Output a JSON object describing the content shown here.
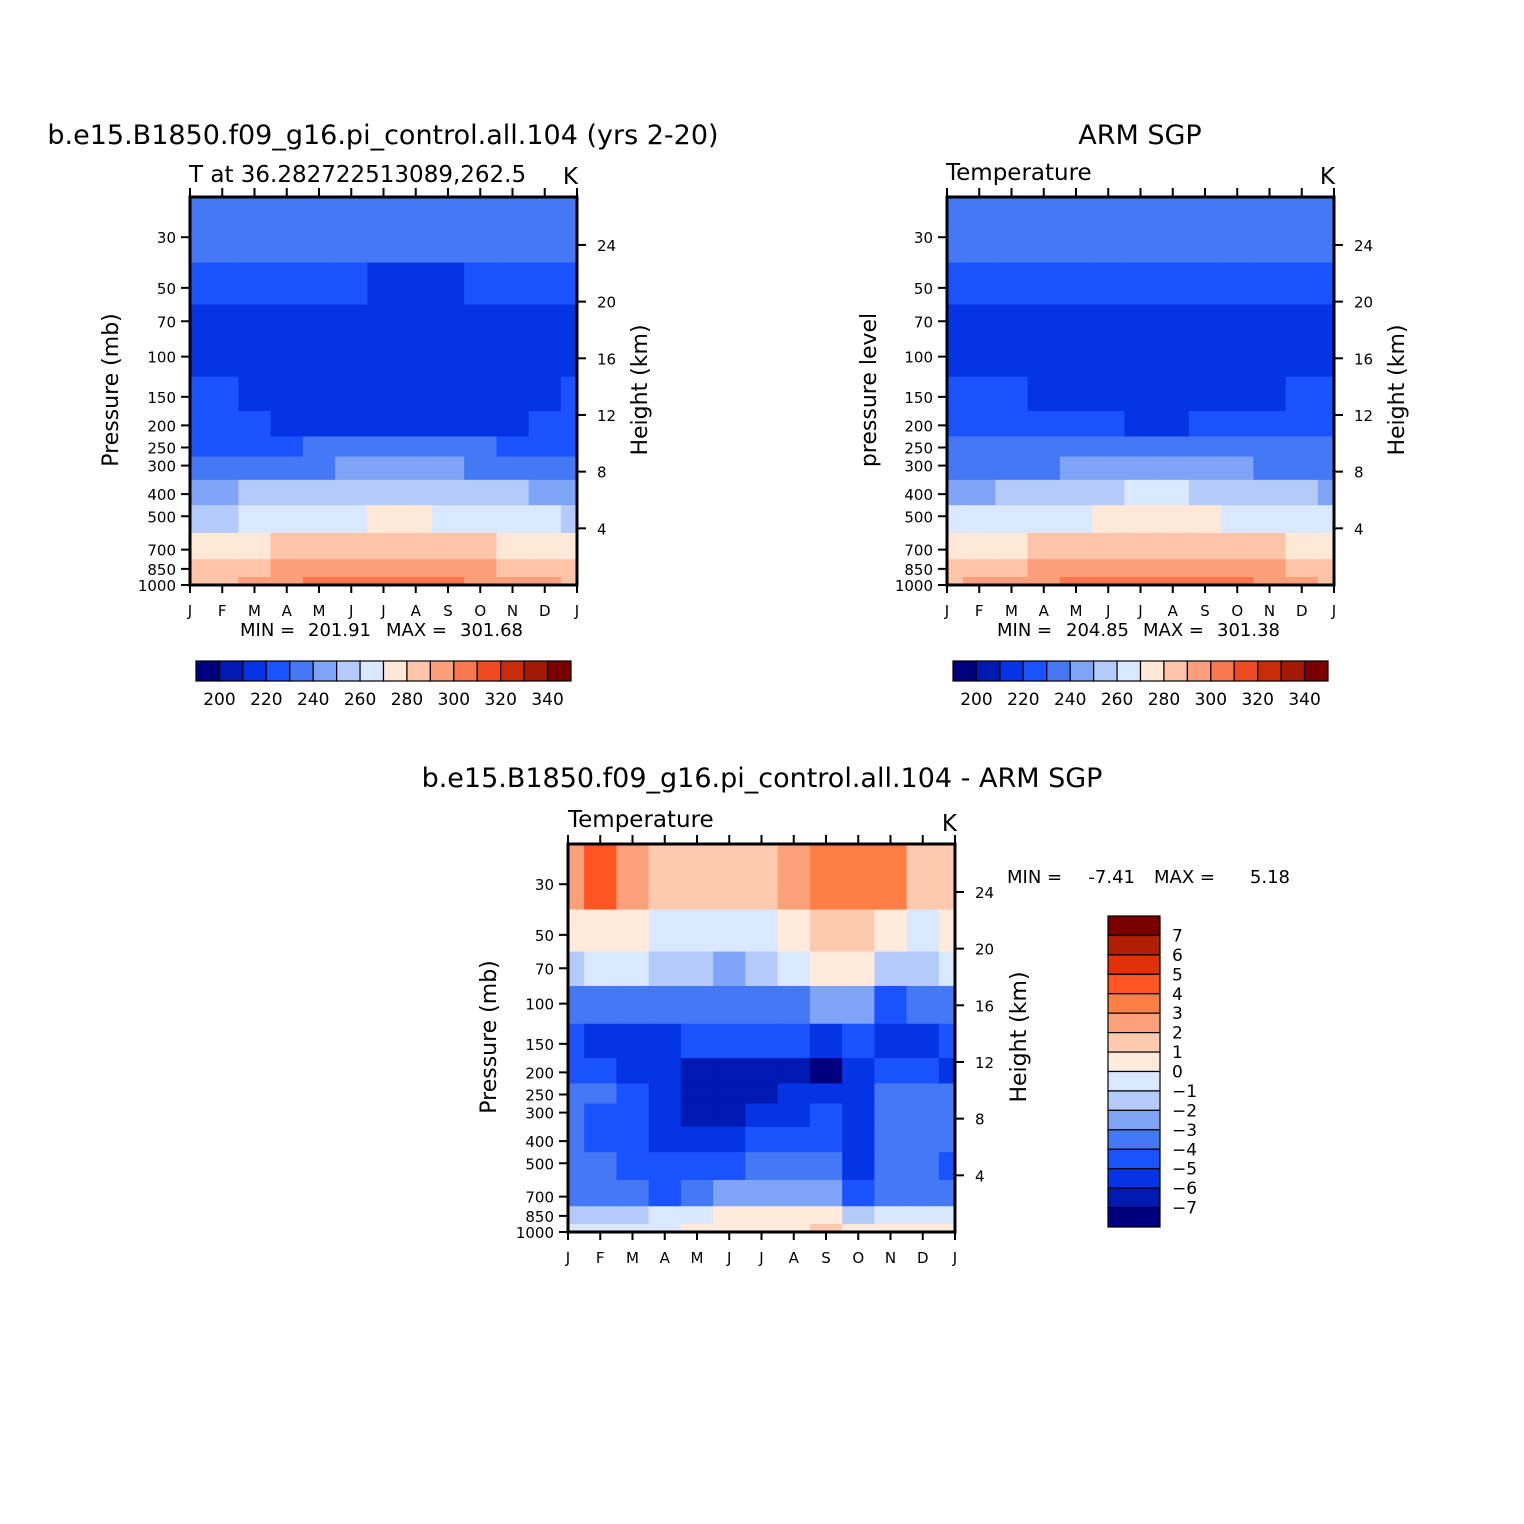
{
  "chart_data": [
    {
      "type": "heatmap",
      "title": "b.e15.B1850.f09_g16.pi_control.all.104 (yrs 2-20)",
      "subtitle_left": "T at 36.282722513089,262.5",
      "subtitle_right": "K",
      "ylabel": "Pressure (mb)",
      "ylabel_right": "Height (km)",
      "x_ticks": [
        "J",
        "F",
        "M",
        "A",
        "M",
        "J",
        "J",
        "A",
        "S",
        "O",
        "N",
        "D",
        "J"
      ],
      "p_ticks": [
        30,
        50,
        70,
        100,
        150,
        200,
        250,
        300,
        400,
        500,
        700,
        850,
        1000
      ],
      "z_ticks": [
        24,
        20,
        16,
        12,
        8,
        4
      ],
      "min_label": "MIN =",
      "min_value": "201.91",
      "max_label": "MAX =",
      "max_value": "301.68",
      "label_bar": {
        "values": [
          "200",
          "220",
          "240",
          "260",
          "280",
          "300",
          "320",
          "340"
        ]
      },
      "series": [
        {
          "name": "30 mb",
          "values": [
            225,
            226,
            226,
            227,
            228,
            229,
            230,
            230,
            230,
            228,
            226,
            225,
            225
          ]
        },
        {
          "name": "50 mb",
          "values": [
            218,
            218,
            217,
            216,
            215,
            215,
            214,
            214,
            214,
            215,
            216,
            217,
            218
          ]
        },
        {
          "name": "70 mb",
          "values": [
            212,
            212,
            211,
            210,
            210,
            209,
            208,
            208,
            208,
            209,
            210,
            211,
            212
          ]
        },
        {
          "name": "100 mb",
          "values": [
            209,
            209,
            209,
            208,
            207,
            207,
            206,
            206,
            206,
            207,
            208,
            209,
            209
          ]
        },
        {
          "name": "150 mb",
          "values": [
            216,
            215,
            214,
            210,
            208,
            208,
            208,
            208,
            208,
            208,
            209,
            212,
            215
          ]
        },
        {
          "name": "200 mb",
          "values": [
            219,
            218,
            217,
            214,
            212,
            212,
            212,
            212,
            212,
            212,
            212,
            216,
            219
          ]
        },
        {
          "name": "250 mb",
          "values": [
            224,
            224,
            224,
            224,
            225,
            226,
            227,
            227,
            226,
            225,
            224,
            224,
            224
          ]
        },
        {
          "name": "300 mb",
          "values": [
            230,
            230,
            231,
            232,
            234,
            236,
            237,
            237,
            236,
            234,
            232,
            231,
            230
          ]
        },
        {
          "name": "400 mb",
          "values": [
            243,
            243,
            245,
            248,
            251,
            253,
            254,
            254,
            253,
            250,
            247,
            244,
            243
          ]
        },
        {
          "name": "500 mb",
          "values": [
            254,
            254,
            256,
            259,
            262,
            264,
            266,
            266,
            264,
            261,
            258,
            256,
            254
          ]
        },
        {
          "name": "700 mb",
          "values": [
            270,
            270,
            272,
            275,
            278,
            281,
            283,
            283,
            281,
            278,
            274,
            271,
            270
          ]
        },
        {
          "name": "850 mb",
          "values": [
            279,
            279,
            281,
            285,
            289,
            292,
            294,
            294,
            292,
            288,
            284,
            281,
            279
          ]
        },
        {
          "name": "1000 mb",
          "values": [
            283,
            283,
            286,
            290,
            295,
            299,
            301,
            301,
            299,
            294,
            289,
            285,
            283
          ]
        }
      ]
    },
    {
      "type": "heatmap",
      "title": "ARM SGP",
      "subtitle_left": "Temperature",
      "subtitle_right": "K",
      "ylabel": "pressure level",
      "ylabel_right": "Height (km)",
      "x_ticks": [
        "J",
        "F",
        "M",
        "A",
        "M",
        "J",
        "J",
        "A",
        "S",
        "O",
        "N",
        "D",
        "J"
      ],
      "p_ticks": [
        30,
        50,
        70,
        100,
        150,
        200,
        250,
        300,
        400,
        500,
        700,
        850,
        1000
      ],
      "z_ticks": [
        24,
        20,
        16,
        12,
        8,
        4
      ],
      "min_label": "MIN =",
      "min_value": "204.85",
      "max_label": "MAX =",
      "max_value": "301.38",
      "label_bar": {
        "values": [
          "200",
          "220",
          "240",
          "260",
          "280",
          "300",
          "320",
          "340"
        ]
      },
      "series": [
        {
          "name": "30 mb",
          "values": [
            225,
            225,
            225,
            226,
            227,
            228,
            230,
            229,
            227,
            226,
            225,
            225,
            225
          ]
        },
        {
          "name": "50 mb",
          "values": [
            217,
            217,
            217,
            216,
            216,
            216,
            216,
            216,
            216,
            216,
            217,
            218,
            218
          ]
        },
        {
          "name": "70 mb",
          "values": [
            213,
            212,
            210,
            211,
            211,
            211,
            211,
            211,
            211,
            211,
            210,
            212,
            214
          ]
        },
        {
          "name": "100 mb",
          "values": [
            213,
            213,
            212,
            212,
            211,
            209,
            208,
            208,
            208,
            209,
            211,
            213,
            214
          ]
        },
        {
          "name": "150 mb",
          "values": [
            216,
            216,
            215,
            214,
            212,
            208,
            207,
            207,
            208,
            209,
            213,
            215,
            216
          ]
        },
        {
          "name": "200 mb",
          "values": [
            219,
            219,
            219,
            218,
            217,
            216,
            214,
            214,
            215,
            216,
            217,
            219,
            219
          ]
        },
        {
          "name": "250 mb",
          "values": [
            225,
            225,
            226,
            227,
            228,
            229,
            230,
            230,
            229,
            228,
            226,
            225,
            225
          ]
        },
        {
          "name": "300 mb",
          "values": [
            231,
            231,
            232,
            233,
            235,
            237,
            238,
            238,
            237,
            235,
            233,
            232,
            231
          ]
        },
        {
          "name": "400 mb",
          "values": [
            244,
            244,
            246,
            248,
            251,
            253,
            255,
            255,
            253,
            250,
            247,
            245,
            244
          ]
        },
        {
          "name": "500 mb",
          "values": [
            255,
            255,
            257,
            260,
            263,
            265,
            266,
            266,
            265,
            262,
            259,
            256,
            255
          ]
        },
        {
          "name": "700 mb",
          "values": [
            271,
            271,
            273,
            276,
            279,
            282,
            284,
            284,
            282,
            279,
            275,
            272,
            271
          ]
        },
        {
          "name": "850 mb",
          "values": [
            281,
            281,
            283,
            286,
            289,
            292,
            294,
            294,
            292,
            289,
            285,
            282,
            281
          ]
        },
        {
          "name": "1000 mb",
          "values": [
            284,
            285,
            287,
            291,
            295,
            298,
            301,
            301,
            299,
            295,
            290,
            286,
            284
          ]
        }
      ]
    },
    {
      "type": "heatmap",
      "title": "b.e15.B1850.f09_g16.pi_control.all.104 - ARM SGP",
      "subtitle_left": "Temperature",
      "subtitle_right": "K",
      "ylabel": "Pressure (mb)",
      "ylabel_right": "Height (km)",
      "x_ticks": [
        "J",
        "F",
        "M",
        "A",
        "M",
        "J",
        "J",
        "A",
        "S",
        "O",
        "N",
        "D",
        "J"
      ],
      "p_ticks": [
        30,
        50,
        70,
        100,
        150,
        200,
        250,
        300,
        400,
        500,
        700,
        850,
        1000
      ],
      "z_ticks": [
        24,
        20,
        16,
        12,
        8,
        4
      ],
      "min_label": "MIN =",
      "min_value": "-7.41",
      "max_label": "MAX =",
      "max_value": "5.18",
      "label_bar": {
        "values": [
          "7",
          "6",
          "5",
          "4",
          "3",
          "2",
          "1",
          "0",
          "-1",
          "-2",
          "-3",
          "-4",
          "-5",
          "-6",
          "-7"
        ]
      },
      "series": [
        {
          "name": "30 mb",
          "values": [
            2.5,
            4.2,
            2.8,
            1.5,
            1.3,
            1.5,
            1.8,
            3.0,
            3.9,
            3.2,
            3.6,
            1.8,
            1.2
          ]
        },
        {
          "name": "50 mb",
          "values": [
            0.3,
            0.5,
            0.2,
            -0.4,
            -0.3,
            -0.2,
            0.0,
            0.3,
            1.2,
            1.1,
            0.3,
            -0.2,
            0.1
          ]
        },
        {
          "name": "70 mb",
          "values": [
            -1.2,
            -0.8,
            -0.6,
            -1.2,
            -1.8,
            -2.0,
            -1.5,
            -0.8,
            0.2,
            0.1,
            -1.4,
            -1.2,
            -0.9
          ]
        },
        {
          "name": "100 mb",
          "values": [
            -3.1,
            -3.4,
            -3.2,
            -3.5,
            -3.8,
            -3.6,
            -3.3,
            -3.1,
            -2.6,
            -2.8,
            -4.1,
            -3.8,
            -3.2
          ]
        },
        {
          "name": "150 mb",
          "values": [
            -4.8,
            -5.5,
            -5.1,
            -5.5,
            -4.9,
            -4.8,
            -4.6,
            -4.8,
            -5.4,
            -4.6,
            -5.5,
            -5.0,
            -4.6
          ]
        },
        {
          "name": "200 mb",
          "values": [
            -4.2,
            -4.9,
            -5.2,
            -5.8,
            -6.1,
            -6.0,
            -6.2,
            -6.4,
            -7.4,
            -5.2,
            -4.6,
            -4.2,
            -5.1
          ]
        },
        {
          "name": "250 mb",
          "values": [
            -3.6,
            -3.9,
            -4.7,
            -5.9,
            -6.2,
            -6.3,
            -6.1,
            -5.8,
            -5.2,
            -5.5,
            -3.1,
            -3.4,
            -3.8
          ]
        },
        {
          "name": "300 mb",
          "values": [
            -3.8,
            -4.5,
            -4.6,
            -5.5,
            -6.1,
            -6.0,
            -5.8,
            -5.3,
            -4.9,
            -5.7,
            -3.0,
            -3.5,
            -3.9
          ]
        },
        {
          "name": "400 mb",
          "values": [
            -3.5,
            -4.3,
            -4.6,
            -5.1,
            -5.5,
            -5.4,
            -4.7,
            -4.3,
            -4.2,
            -5.8,
            -3.3,
            -3.8,
            -3.6
          ]
        },
        {
          "name": "500 mb",
          "values": [
            -3.4,
            -3.8,
            -4.2,
            -4.5,
            -4.2,
            -4.0,
            -3.6,
            -3.3,
            -3.5,
            -5.1,
            -3.4,
            -3.6,
            -4.1
          ]
        },
        {
          "name": "700 mb",
          "values": [
            -3.2,
            -3.5,
            -3.8,
            -4.1,
            -3.3,
            -2.9,
            -2.6,
            -2.5,
            -2.9,
            -4.5,
            -3.5,
            -3.3,
            -3.2
          ]
        },
        {
          "name": "850 mb",
          "values": [
            -1.5,
            -1.2,
            -1.0,
            -0.9,
            -0.5,
            0.2,
            0.4,
            0.1,
            0.3,
            -1.5,
            -0.4,
            -0.5,
            -0.8
          ]
        },
        {
          "name": "1000 mb",
          "values": [
            -0.6,
            -0.5,
            -0.3,
            -0.3,
            0.3,
            0.7,
            0.6,
            0.4,
            1.2,
            0.2,
            0.9,
            0.6,
            0.3
          ]
        }
      ]
    }
  ],
  "colors": {
    "abs_scale": [
      "#00007f",
      "#0019b2",
      "#0534e6",
      "#1a52ff",
      "#4578f5",
      "#7fa4f7",
      "#b4cbfa",
      "#d9e8ff",
      "#ffe8d8",
      "#fdc4a8",
      "#fb9f7a",
      "#f8774f",
      "#ef4a20",
      "#c92c08",
      "#a21a03",
      "#7a0000"
    ],
    "diff_scale": [
      "#7a0000",
      "#b01e03",
      "#e0310a",
      "#ff5523",
      "#ff7e44",
      "#fca07a",
      "#fdc9af",
      "#ffeadb",
      "#d9e8ff",
      "#b4cbfa",
      "#7fa4f7",
      "#4578f5",
      "#1a52ff",
      "#0534e6",
      "#0019b2",
      "#00007f"
    ]
  }
}
